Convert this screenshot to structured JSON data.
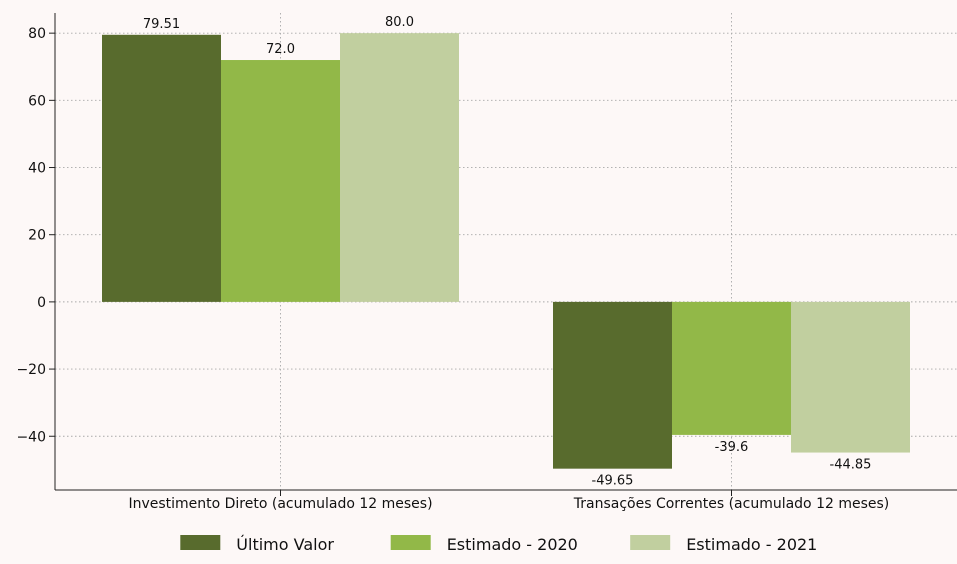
{
  "chart_data": {
    "type": "bar",
    "categories": [
      "Investimento Direto (acumulado 12 meses)",
      "Transações Correntes (acumulado 12 meses)"
    ],
    "series": [
      {
        "name": "Último Valor",
        "values": [
          79.51,
          -49.65
        ],
        "labels": [
          "79.51",
          "-49.65"
        ],
        "color": "#586b2d"
      },
      {
        "name": "Estimado - 2020",
        "values": [
          72.0,
          -39.6
        ],
        "labels": [
          "72.0",
          "-39.6"
        ],
        "color": "#92b848"
      },
      {
        "name": "Estimado - 2021",
        "values": [
          80.0,
          -44.85
        ],
        "labels": [
          "80.0",
          "-44.85"
        ],
        "color": "#c1cf9f"
      }
    ],
    "ylim": [
      -56,
      86
    ],
    "yticks": [
      80,
      60,
      40,
      20,
      0,
      -20,
      -40
    ],
    "ytick_labels": [
      "80",
      "60",
      "40",
      "20",
      "0",
      "−20",
      "−40"
    ],
    "grid": true,
    "legend_position": "bottom-center"
  }
}
